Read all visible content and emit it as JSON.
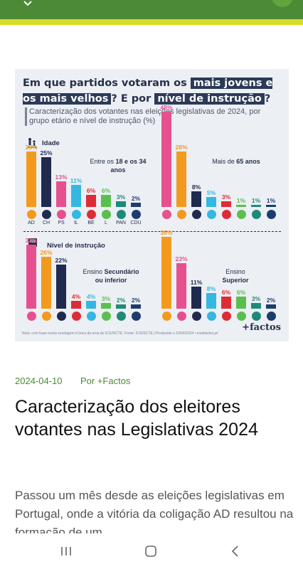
{
  "infographic": {
    "title_part1": "Em que partidos votaram os ",
    "title_hl1": "mais jovens e os mais velhos",
    "title_part2": "? E por ",
    "title_hl2": "nível de instrução",
    "title_part3": "?",
    "subtitle": "Caracterização dos votantes nas eleições legislativas de 2024, por grupo etário e nível de instrução (%)",
    "section_age": "Idade",
    "section_education": "Nível de instrução",
    "note": "Nota: com base numa sondagem à boca da urna do ICS/ISCTE. Fonte: ICS/ISCTE | Produzido a 10/04/2024 • maisfactos.pt",
    "brand": "+factos"
  },
  "chart_data": [
    {
      "type": "bar",
      "group_label_pre": "Entre os ",
      "group_label_bold": "18 e os 34 anos",
      "categories": [
        "AD",
        "CH",
        "PS",
        "IL",
        "BE",
        "L",
        "PAN",
        "CDU"
      ],
      "values": [
        28,
        25,
        13,
        11,
        6,
        6,
        3,
        2
      ],
      "value_labels": [
        "28%",
        "25%",
        "13%",
        "11%",
        "6%",
        "6%",
        "3%",
        "2%"
      ]
    },
    {
      "type": "bar",
      "group_label_pre": "Mais de ",
      "group_label_bold": "65 anos",
      "categories": [
        "PS",
        "AD",
        "CH",
        "IL",
        "BE",
        "L",
        "PAN",
        "CDU"
      ],
      "values": [
        48,
        28,
        8,
        5,
        3,
        1,
        1,
        1
      ],
      "value_labels": [
        "48%",
        "28%",
        "8%",
        "5%",
        "3%",
        "1%",
        "1%",
        "1%"
      ]
    },
    {
      "type": "bar",
      "group_label_pre": "Ensino ",
      "group_label_bold": "Secundário ou inferior",
      "categories": [
        "PS",
        "AD",
        "CH",
        "BE",
        "IL",
        "L",
        "PAN",
        "CDU"
      ],
      "values": [
        32,
        26,
        22,
        4,
        4,
        3,
        2,
        2
      ],
      "value_labels": [
        "32%",
        "26%",
        "22%",
        "4%",
        "4%",
        "3%",
        "2%",
        "2%"
      ]
    },
    {
      "type": "bar",
      "group_label_pre": "Ensino ",
      "group_label_bold": "Superior",
      "categories": [
        "AD",
        "PS",
        "CH",
        "IL",
        "BE",
        "L",
        "PAN",
        "CDU"
      ],
      "values": [
        36,
        23,
        11,
        8,
        6,
        6,
        3,
        2
      ],
      "value_labels": [
        "36%",
        "23%",
        "11%",
        "8%",
        "6%",
        "6%",
        "3%",
        "2%"
      ]
    }
  ],
  "party_colors": {
    "AD": "#f39a1e",
    "CH": "#1f2a4e",
    "PS": "#e6508e",
    "IL": "#34b7e0",
    "BE": "#dd2c36",
    "L": "#5bbf4f",
    "PAN": "#1f8a7a",
    "CDU": "#1d3c6e"
  },
  "article": {
    "date": "2024-04-10",
    "author": "Por +Factos",
    "title": "Caracterização dos eleitores votantes nas Legislativas 2024",
    "body": "Passou um mês desde as eleições legislativas em Portugal, onde a vitória da coligação AD resultou na formação de um"
  },
  "navbar": {
    "recents_icon": "recents-icon",
    "home_icon": "home-icon",
    "back_icon": "back-icon"
  }
}
